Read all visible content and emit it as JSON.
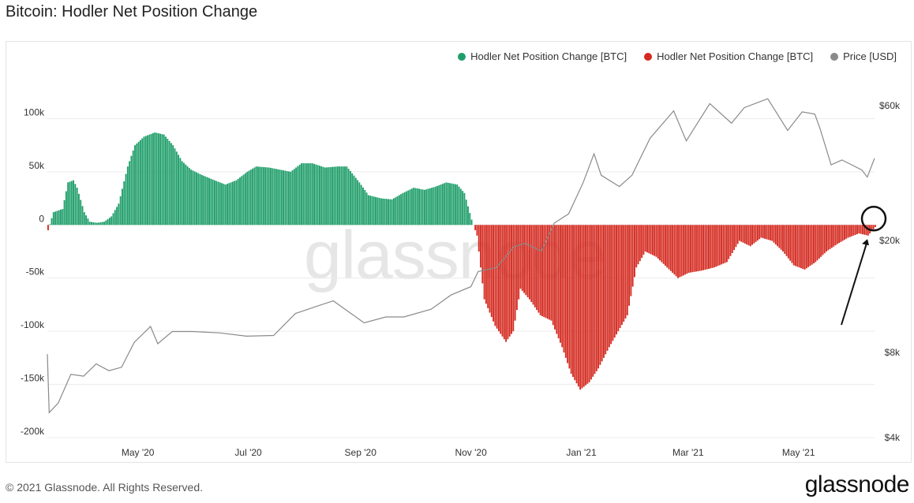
{
  "page": {
    "title": "Bitcoin: Hodler Net Position Change",
    "copyright": "© 2021 Glassnode. All Rights Reserved.",
    "brand": "glassnode",
    "watermark": "glassnode"
  },
  "colors": {
    "positive": "#1f9e6a",
    "negative": "#d42a20",
    "price": "#8a8a8a",
    "grid": "#ececec"
  },
  "chart_data": {
    "type": "bar",
    "title": "Bitcoin: Hodler Net Position Change",
    "legend_position": "top-right",
    "grid": true,
    "series": [
      {
        "name": "Hodler Net Position Change [BTC]",
        "role": "positive",
        "color": "#1f9e6a"
      },
      {
        "name": "Hodler Net Position Change [BTC]",
        "role": "negative",
        "color": "#d42a20"
      },
      {
        "name": "Price [USD]",
        "role": "price",
        "color": "#8a8a8a"
      }
    ],
    "x_ticks": [
      "May '20",
      "Jul '20",
      "Sep '20",
      "Nov '20",
      "Jan '21",
      "Mar '21",
      "May '21"
    ],
    "x_tick_dates": [
      "2020-05-01",
      "2020-07-01",
      "2020-09-01",
      "2020-11-01",
      "2021-01-01",
      "2021-03-01",
      "2021-05-01"
    ],
    "x_range": [
      "2020-03-12",
      "2021-06-12"
    ],
    "left_axis": {
      "ticks": [
        100000,
        50000,
        0,
        -50000,
        -100000,
        -150000,
        -200000
      ],
      "tick_labels": [
        "100k",
        "50k",
        "0",
        "-50k",
        "-100k",
        "-150k",
        "-200k"
      ],
      "range": [
        -200000,
        130000
      ]
    },
    "right_axis": {
      "scale": "log",
      "ticks": [
        60000,
        20000,
        8000,
        4000
      ],
      "tick_labels": [
        "$60k",
        "$20k",
        "$8k",
        "$4k"
      ],
      "range": [
        4000,
        70000
      ]
    },
    "hodler_net_position_change": [
      [
        "2020-03-12",
        -5000
      ],
      [
        "2020-03-15",
        12000
      ],
      [
        "2020-03-20",
        15000
      ],
      [
        "2020-03-23",
        40000
      ],
      [
        "2020-03-26",
        42000
      ],
      [
        "2020-03-28",
        35000
      ],
      [
        "2020-04-01",
        12000
      ],
      [
        "2020-04-04",
        3000
      ],
      [
        "2020-04-08",
        2000
      ],
      [
        "2020-04-12",
        3000
      ],
      [
        "2020-04-16",
        8000
      ],
      [
        "2020-04-20",
        20000
      ],
      [
        "2020-04-25",
        55000
      ],
      [
        "2020-04-29",
        75000
      ],
      [
        "2020-05-04",
        83000
      ],
      [
        "2020-05-10",
        87000
      ],
      [
        "2020-05-15",
        85000
      ],
      [
        "2020-05-20",
        75000
      ],
      [
        "2020-05-25",
        60000
      ],
      [
        "2020-05-30",
        52000
      ],
      [
        "2020-06-05",
        47000
      ],
      [
        "2020-06-12",
        42000
      ],
      [
        "2020-06-18",
        38000
      ],
      [
        "2020-06-24",
        42000
      ],
      [
        "2020-06-30",
        50000
      ],
      [
        "2020-07-05",
        55000
      ],
      [
        "2020-07-12",
        54000
      ],
      [
        "2020-07-18",
        52000
      ],
      [
        "2020-07-24",
        50000
      ],
      [
        "2020-07-30",
        58000
      ],
      [
        "2020-08-05",
        58000
      ],
      [
        "2020-08-12",
        54000
      ],
      [
        "2020-08-19",
        55000
      ],
      [
        "2020-08-24",
        55000
      ],
      [
        "2020-08-31",
        40000
      ],
      [
        "2020-09-05",
        28000
      ],
      [
        "2020-09-12",
        25000
      ],
      [
        "2020-09-18",
        24000
      ],
      [
        "2020-09-24",
        30000
      ],
      [
        "2020-09-30",
        35000
      ],
      [
        "2020-10-06",
        33000
      ],
      [
        "2020-10-12",
        36000
      ],
      [
        "2020-10-18",
        40000
      ],
      [
        "2020-10-24",
        38000
      ],
      [
        "2020-10-28",
        30000
      ],
      [
        "2020-11-01",
        5000
      ],
      [
        "2020-11-04",
        -10000
      ],
      [
        "2020-11-08",
        -70000
      ],
      [
        "2020-11-14",
        -95000
      ],
      [
        "2020-11-20",
        -110000
      ],
      [
        "2020-11-24",
        -100000
      ],
      [
        "2020-11-28",
        -60000
      ],
      [
        "2020-12-03",
        -70000
      ],
      [
        "2020-12-09",
        -85000
      ],
      [
        "2020-12-15",
        -90000
      ],
      [
        "2020-12-21",
        -115000
      ],
      [
        "2020-12-26",
        -140000
      ],
      [
        "2020-12-31",
        -155000
      ],
      [
        "2021-01-05",
        -148000
      ],
      [
        "2021-01-10",
        -135000
      ],
      [
        "2021-01-16",
        -115000
      ],
      [
        "2021-01-21",
        -100000
      ],
      [
        "2021-01-26",
        -85000
      ],
      [
        "2021-01-31",
        -40000
      ],
      [
        "2021-02-05",
        -25000
      ],
      [
        "2021-02-11",
        -30000
      ],
      [
        "2021-02-17",
        -40000
      ],
      [
        "2021-02-23",
        -50000
      ],
      [
        "2021-03-01",
        -45000
      ],
      [
        "2021-03-08",
        -43000
      ],
      [
        "2021-03-15",
        -40000
      ],
      [
        "2021-03-22",
        -35000
      ],
      [
        "2021-03-29",
        -15000
      ],
      [
        "2021-04-04",
        -20000
      ],
      [
        "2021-04-10",
        -12000
      ],
      [
        "2021-04-16",
        -15000
      ],
      [
        "2021-04-22",
        -25000
      ],
      [
        "2021-04-28",
        -38000
      ],
      [
        "2021-05-04",
        -42000
      ],
      [
        "2021-05-10",
        -35000
      ],
      [
        "2021-05-16",
        -25000
      ],
      [
        "2021-05-22",
        -18000
      ],
      [
        "2021-05-28",
        -12000
      ],
      [
        "2021-06-03",
        -8000
      ],
      [
        "2021-06-08",
        -10000
      ],
      [
        "2021-06-12",
        -2000
      ]
    ],
    "price_usd": [
      [
        "2020-03-12",
        7900
      ],
      [
        "2020-03-13",
        4900
      ],
      [
        "2020-03-18",
        5300
      ],
      [
        "2020-03-25",
        6700
      ],
      [
        "2020-04-01",
        6600
      ],
      [
        "2020-04-08",
        7300
      ],
      [
        "2020-04-15",
        6900
      ],
      [
        "2020-04-22",
        7100
      ],
      [
        "2020-04-29",
        8700
      ],
      [
        "2020-05-08",
        9900
      ],
      [
        "2020-05-12",
        8600
      ],
      [
        "2020-05-20",
        9500
      ],
      [
        "2020-05-31",
        9500
      ],
      [
        "2020-06-15",
        9400
      ],
      [
        "2020-06-30",
        9150
      ],
      [
        "2020-07-15",
        9200
      ],
      [
        "2020-07-27",
        11000
      ],
      [
        "2020-08-10",
        11800
      ],
      [
        "2020-08-17",
        12200
      ],
      [
        "2020-09-03",
        10200
      ],
      [
        "2020-09-15",
        10700
      ],
      [
        "2020-09-25",
        10700
      ],
      [
        "2020-10-10",
        11400
      ],
      [
        "2020-10-21",
        12800
      ],
      [
        "2020-11-01",
        13700
      ],
      [
        "2020-11-05",
        15500
      ],
      [
        "2020-11-15",
        16000
      ],
      [
        "2020-11-25",
        19000
      ],
      [
        "2020-12-01",
        19500
      ],
      [
        "2020-12-10",
        18300
      ],
      [
        "2020-12-17",
        23000
      ],
      [
        "2020-12-25",
        24800
      ],
      [
        "2021-01-02",
        32000
      ],
      [
        "2021-01-08",
        40500
      ],
      [
        "2021-01-12",
        34000
      ],
      [
        "2021-01-22",
        31000
      ],
      [
        "2021-01-29",
        34000
      ],
      [
        "2021-02-08",
        46000
      ],
      [
        "2021-02-21",
        57500
      ],
      [
        "2021-02-28",
        45000
      ],
      [
        "2021-03-13",
        61000
      ],
      [
        "2021-03-25",
        52000
      ],
      [
        "2021-04-01",
        59000
      ],
      [
        "2021-04-14",
        63500
      ],
      [
        "2021-04-25",
        49000
      ],
      [
        "2021-05-03",
        57000
      ],
      [
        "2021-05-10",
        56000
      ],
      [
        "2021-05-13",
        49500
      ],
      [
        "2021-05-19",
        37000
      ],
      [
        "2021-05-25",
        38500
      ],
      [
        "2021-06-05",
        35500
      ],
      [
        "2021-06-08",
        33500
      ],
      [
        "2021-06-12",
        39000
      ]
    ]
  }
}
